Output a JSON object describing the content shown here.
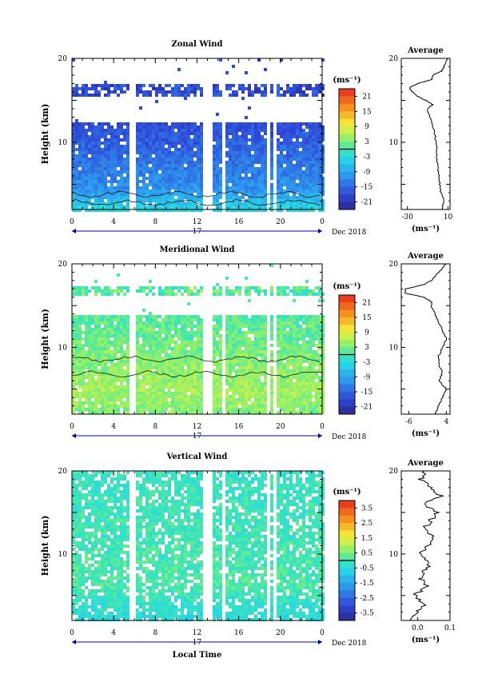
{
  "x_axis": {
    "ticks": [
      "0",
      "4",
      "8",
      "12",
      "16",
      "20",
      "0"
    ],
    "day_label": "17",
    "month_label": "Dec 2018",
    "xlabel": "Local Time",
    "range": [
      0,
      24
    ]
  },
  "chart_data": [
    {
      "type": "heatmap",
      "title": "Zonal Wind",
      "ylabel": "Height (km)",
      "ylim": [
        2,
        20
      ],
      "yticks": [
        "20",
        "10"
      ],
      "colorbar": {
        "unit": "(ms⁻¹)",
        "ticks": [
          "21",
          "15",
          "9",
          "3",
          "-3",
          "-9",
          "-15",
          "-21"
        ],
        "range": [
          -24,
          24
        ]
      },
      "field": {
        "low_layer_value": -3,
        "mid_layer_value": -11,
        "top_layer_value": -18,
        "data_top_km": 12.5,
        "upper_band_km": [
          15.5,
          17.0
        ],
        "contour": "zero-wind contour near 2-4 km"
      },
      "gaps_hours": [
        5.7,
        12.6,
        13.1,
        14.4,
        18.7,
        19.3
      ],
      "average_profile": {
        "title": "Average",
        "xticks": [
          "-30",
          "10"
        ],
        "xrange": [
          -36,
          12
        ],
        "xunit": "(ms⁻¹)",
        "height_km": [
          2,
          3,
          4,
          5,
          6,
          7,
          8,
          9,
          10,
          11,
          12,
          13,
          14,
          14.5,
          15,
          15.5,
          16,
          16.5,
          17,
          17.5,
          18,
          18.5,
          19,
          20
        ],
        "values": [
          4,
          6,
          3,
          2,
          1,
          0,
          -1,
          -1,
          -2,
          -3,
          -5,
          -8,
          -10,
          -5,
          -12,
          -20,
          -25,
          -28,
          -20,
          -6,
          -5,
          4,
          6,
          10
        ]
      }
    },
    {
      "type": "heatmap",
      "title": "Meridional Wind",
      "ylabel": "Height (km)",
      "ylim": [
        2,
        20
      ],
      "yticks": [
        "20",
        "10"
      ],
      "colorbar": {
        "unit": "(ms⁻¹)",
        "ticks": [
          "21",
          "15",
          "9",
          "3",
          "-3",
          "-9",
          "-15",
          "-21"
        ],
        "range": [
          -24,
          24
        ]
      },
      "field": {
        "low_layer_value": 3,
        "mid_layer_value": 5,
        "top_layer_value": 1,
        "data_top_km": 14.0,
        "upper_band_km": [
          16.5,
          17.4
        ],
        "contour": "zero-wind contour near 6-9 km"
      },
      "gaps_hours": [
        5.7,
        12.6,
        13.1,
        14.4,
        18.7,
        19.3
      ],
      "average_profile": {
        "title": "Average",
        "xticks": [
          "-6",
          "4"
        ],
        "xrange": [
          -8,
          5
        ],
        "xunit": "(ms⁻¹)",
        "height_km": [
          2,
          3,
          4,
          5,
          6,
          7,
          8,
          9,
          10,
          11,
          12,
          13,
          14,
          15,
          15.5,
          16,
          16.5,
          17,
          17.5,
          18,
          19,
          20
        ],
        "values": [
          1,
          2,
          3,
          4,
          2,
          3,
          2,
          2,
          3,
          4,
          3,
          2,
          1,
          0,
          0,
          -2,
          -7,
          -7,
          -2,
          0,
          2,
          4
        ]
      }
    },
    {
      "type": "heatmap",
      "title": "Vertical Wind",
      "ylabel": "Height (km)",
      "ylim": [
        2,
        20
      ],
      "yticks": [
        "20",
        "10"
      ],
      "colorbar": {
        "unit": "(ms⁻¹)",
        "ticks": [
          "3.5",
          "2.5",
          "1.5",
          "0.5",
          "-0.5",
          "-1.5",
          "-2.5",
          "-3.5"
        ],
        "range": [
          -4,
          4
        ]
      },
      "field": {
        "low_layer_value": -0.6,
        "mid_layer_value": 0.1,
        "top_layer_value": -0.2,
        "data_top_km": 20.0,
        "upper_band_km": [
          18.5,
          19.5
        ],
        "contour": ""
      },
      "gaps_hours": [
        5.7,
        12.6,
        13.1,
        14.4,
        18.7,
        19.3
      ],
      "average_profile": {
        "title": "Average",
        "xticks": [
          "0.0",
          "0.1"
        ],
        "xrange": [
          -0.05,
          0.1
        ],
        "xunit": "(ms⁻¹)",
        "height_km": [
          2,
          3,
          4,
          5,
          6,
          7,
          8,
          9,
          10,
          11,
          12,
          13,
          14,
          15,
          16,
          17,
          18,
          19,
          20
        ],
        "values": [
          -0.02,
          0.0,
          0.02,
          -0.01,
          0.03,
          0.01,
          0.02,
          0.04,
          0.01,
          0.03,
          0.05,
          0.02,
          0.04,
          0.06,
          0.02,
          0.07,
          0.04,
          0.01,
          0.02
        ]
      }
    }
  ]
}
